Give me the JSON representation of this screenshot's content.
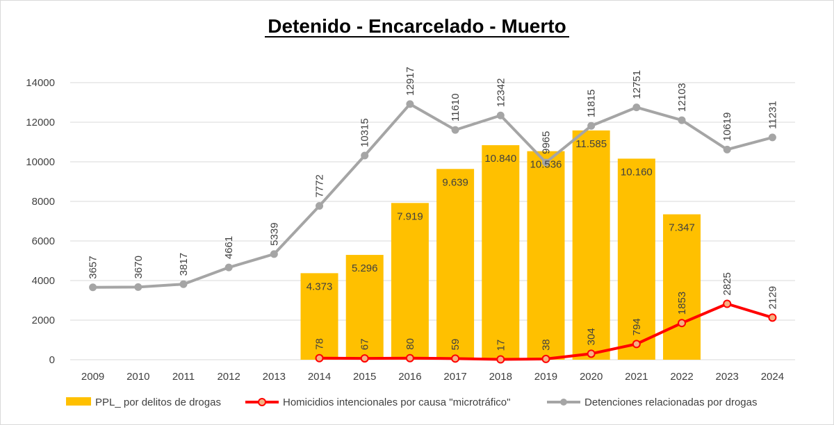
{
  "chart_data": {
    "type": "bar",
    "title": "Detenido - Encarcelado  - Muerto",
    "categories": [
      "2009",
      "2010",
      "2011",
      "2012",
      "2013",
      "2014",
      "2015",
      "2016",
      "2017",
      "2018",
      "2019",
      "2020",
      "2021",
      "2022",
      "2023",
      "2024"
    ],
    "ylim": [
      0,
      14000
    ],
    "yticks": [
      0,
      2000,
      4000,
      6000,
      8000,
      10000,
      12000,
      14000
    ],
    "grid": true,
    "legend_position": "bottom",
    "series": [
      {
        "name": "PPL_ por delitos de drogas",
        "type": "bar",
        "color": "#FFC000",
        "values": [
          null,
          null,
          null,
          null,
          null,
          4373,
          5296,
          7919,
          9639,
          10840,
          10536,
          11585,
          10160,
          7347,
          null,
          null
        ],
        "labels": [
          "",
          "",
          "",
          "",
          "",
          "4.373",
          "5.296",
          "7.919",
          "9.639",
          "10.840",
          "10.536",
          "11.585",
          "10.160",
          "7.347",
          "",
          ""
        ]
      },
      {
        "name": "Homicidios intencionales por causa \"microtráfico\"",
        "type": "line",
        "color": "#FF0000",
        "values": [
          null,
          null,
          null,
          null,
          null,
          78,
          67,
          80,
          59,
          17,
          38,
          304,
          794,
          1853,
          2825,
          2129
        ],
        "labels": [
          "",
          "",
          "",
          "",
          "",
          "78",
          "67",
          "80",
          "59",
          "17",
          "38",
          "304",
          "794",
          "1853",
          "2825",
          "2129"
        ]
      },
      {
        "name": "Detenciones relacionadas por drogas",
        "type": "line",
        "color": "#A5A5A5",
        "values": [
          3657,
          3670,
          3817,
          4661,
          5339,
          7772,
          10315,
          12917,
          11610,
          12342,
          9965,
          11815,
          12751,
          12103,
          10619,
          11231
        ],
        "labels": [
          "3657",
          "3670",
          "3817",
          "4661",
          "5339",
          "7772",
          "10315",
          "12917",
          "11610",
          "12342",
          "9965",
          "11815",
          "12751",
          "12103",
          "10619",
          "11231"
        ]
      }
    ]
  }
}
